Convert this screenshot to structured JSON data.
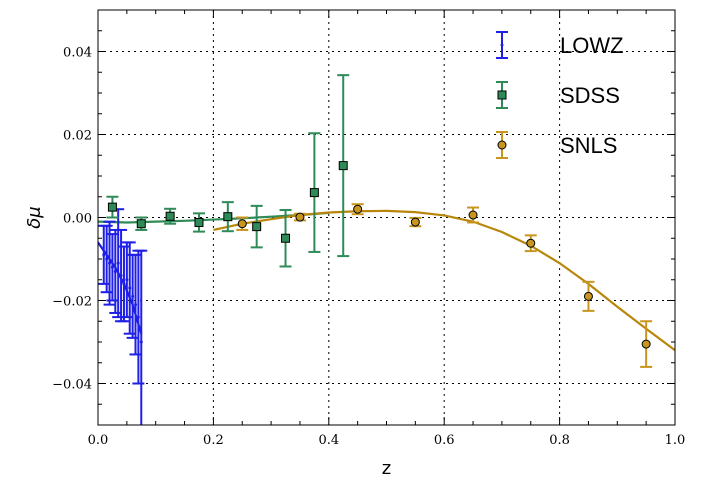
{
  "chart_data": {
    "type": "scatter",
    "title": "",
    "xlabel": "z",
    "ylabel": "δμ",
    "xlim": [
      0.0,
      1.0
    ],
    "ylim": [
      -0.05,
      0.05
    ],
    "x_ticks": [
      "0.0",
      "0.2",
      "0.4",
      "0.6",
      "0.8",
      "1.0"
    ],
    "y_ticks": [
      "−0.04",
      "−0.02",
      "0.00",
      "0.02",
      "0.04"
    ],
    "grid": true,
    "legend_position": "top-right",
    "series": [
      {
        "name": "LOWZ",
        "color": "#1f1fe6",
        "marker": "point",
        "points": [
          {
            "x": 0.01,
            "y": -0.009,
            "yerr": 0.007
          },
          {
            "x": 0.015,
            "y": -0.01,
            "yerr": 0.008
          },
          {
            "x": 0.02,
            "y": -0.011,
            "yerr": 0.01
          },
          {
            "x": 0.025,
            "y": -0.012,
            "yerr": 0.008
          },
          {
            "x": 0.03,
            "y": -0.013,
            "yerr": 0.01
          },
          {
            "x": 0.035,
            "y": -0.011,
            "yerr": 0.013
          },
          {
            "x": 0.04,
            "y": -0.014,
            "yerr": 0.011
          },
          {
            "x": 0.045,
            "y": -0.016,
            "yerr": 0.009
          },
          {
            "x": 0.05,
            "y": -0.015,
            "yerr": 0.009
          },
          {
            "x": 0.055,
            "y": -0.017,
            "yerr": 0.011
          },
          {
            "x": 0.06,
            "y": -0.019,
            "yerr": 0.01
          },
          {
            "x": 0.065,
            "y": -0.021,
            "yerr": 0.012
          },
          {
            "x": 0.07,
            "y": -0.024,
            "yerr": 0.016
          },
          {
            "x": 0.075,
            "y": -0.03,
            "yerr": 0.022
          }
        ],
        "curve": {
          "x": [
            0.0,
            0.015,
            0.03,
            0.045,
            0.06,
            0.075
          ],
          "y": [
            -0.006,
            -0.009,
            -0.012,
            -0.016,
            -0.021,
            -0.028
          ]
        }
      },
      {
        "name": "SDSS",
        "color": "#2e8b57",
        "marker": "square",
        "points": [
          {
            "x": 0.025,
            "y": 0.0025,
            "yerr": 0.0025
          },
          {
            "x": 0.075,
            "y": -0.0015,
            "yerr": 0.0015
          },
          {
            "x": 0.125,
            "y": 0.0003,
            "yerr": 0.0018
          },
          {
            "x": 0.175,
            "y": -0.0012,
            "yerr": 0.0022
          },
          {
            "x": 0.225,
            "y": 0.0002,
            "yerr": 0.0035
          },
          {
            "x": 0.275,
            "y": -0.0022,
            "yerr": 0.005
          },
          {
            "x": 0.325,
            "y": -0.005,
            "yerr": 0.0068
          },
          {
            "x": 0.375,
            "y": 0.006,
            "yerr": 0.0143
          },
          {
            "x": 0.425,
            "y": 0.0125,
            "yerr": 0.0218
          }
        ],
        "curve": {
          "x": [
            0.0,
            0.05,
            0.1,
            0.15,
            0.2,
            0.25,
            0.3,
            0.35,
            0.4
          ],
          "y": [
            -0.001,
            -0.0012,
            -0.001,
            -0.0008,
            -0.0005,
            -0.0002,
            0.0002,
            0.0006,
            0.0011
          ]
        }
      },
      {
        "name": "SNLS",
        "color": "#c8961e",
        "curve_color": "#b8860b",
        "marker": "circle",
        "points": [
          {
            "x": 0.25,
            "y": -0.0015,
            "yerr": 0.0015
          },
          {
            "x": 0.35,
            "y": 0.0001,
            "yerr": 0.0008
          },
          {
            "x": 0.45,
            "y": 0.002,
            "yerr": 0.0012
          },
          {
            "x": 0.55,
            "y": -0.0011,
            "yerr": 0.001
          },
          {
            "x": 0.65,
            "y": 0.0006,
            "yerr": 0.0018
          },
          {
            "x": 0.75,
            "y": -0.0062,
            "yerr": 0.0019
          },
          {
            "x": 0.85,
            "y": -0.019,
            "yerr": 0.0035
          },
          {
            "x": 0.95,
            "y": -0.0305,
            "yerr": 0.0055
          }
        ],
        "curve": {
          "x": [
            0.2,
            0.25,
            0.3,
            0.35,
            0.4,
            0.45,
            0.5,
            0.55,
            0.6,
            0.65,
            0.7,
            0.75,
            0.8,
            0.85,
            0.9,
            0.95,
            1.0
          ],
          "y": [
            -0.003,
            -0.0015,
            -0.0004,
            0.0006,
            0.0012,
            0.0015,
            0.0016,
            0.0013,
            0.0005,
            -0.001,
            -0.0035,
            -0.0068,
            -0.011,
            -0.016,
            -0.0215,
            -0.0268,
            -0.032
          ]
        }
      }
    ]
  }
}
